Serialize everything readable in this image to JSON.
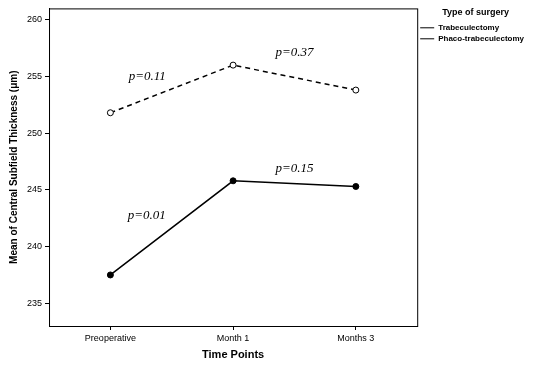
{
  "chart_data": {
    "type": "line",
    "x_label": "Time Points",
    "y_label": "Mean of Central Subfield Thickness (μm)",
    "legend_title": "Type of surgery",
    "legend": "top right",
    "categories": [
      "Preoperative",
      "Month 1",
      "Months 3"
    ],
    "series": [
      {
        "name": "Trabeculectomy",
        "color": "#000000",
        "line_style": "dashed",
        "marker": "circle_open",
        "values": [
          251.8,
          256.0,
          253.8
        ]
      },
      {
        "name": "Phaco-trabeculectomy",
        "color": "#000000",
        "line_style": "solid",
        "marker": "circle",
        "values": [
          237.5,
          245.8,
          245.3
        ]
      }
    ],
    "ylim": [
      233,
      261
    ],
    "yticks": [
      235,
      240,
      245,
      250,
      255,
      260
    ],
    "grid": false,
    "annotations": [
      {
        "text": "p=0.11",
        "series": "Trabeculectomy",
        "between": [
          "Preoperative",
          "Month 1"
        ]
      },
      {
        "text": "p=0.37",
        "series": "Trabeculectomy",
        "between": [
          "Month 1",
          "Months 3"
        ]
      },
      {
        "text": "p=0.01",
        "series": "Phaco-trabeculectomy",
        "between": [
          "Preoperative",
          "Month 1"
        ]
      },
      {
        "text": "p=0.15",
        "series": "Phaco-trabeculectomy",
        "between": [
          "Month 1",
          "Months 3"
        ]
      }
    ]
  }
}
